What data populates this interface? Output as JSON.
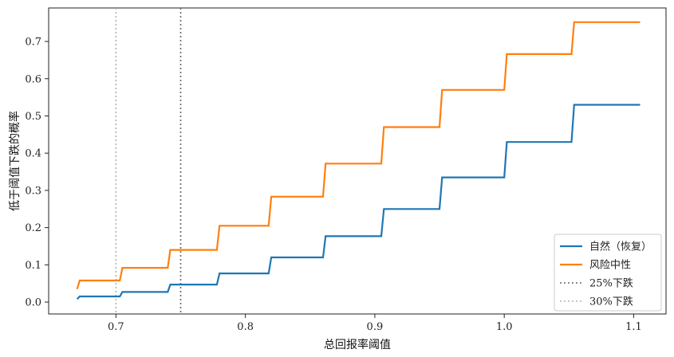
{
  "chart_data": {
    "type": "line",
    "xlabel": "总回报率阈值",
    "ylabel": "低于阈值下跌的概率",
    "xlim": [
      0.648,
      1.125
    ],
    "ylim": [
      -0.032,
      0.79
    ],
    "xticks": [
      0.7,
      0.8,
      0.9,
      1.0,
      1.1
    ],
    "xtick_labels": [
      "0.7",
      "0.8",
      "0.9",
      "1.0",
      "1.1"
    ],
    "yticks": [
      0.0,
      0.1,
      0.2,
      0.3,
      0.4,
      0.5,
      0.6,
      0.7
    ],
    "ytick_labels": [
      "0.0",
      "0.1",
      "0.2",
      "0.3",
      "0.4",
      "0.5",
      "0.6",
      "0.7"
    ],
    "grid": false,
    "legend_position": "lower-right",
    "series": [
      {
        "name": "自然（恢复）",
        "color": "#1f77b4",
        "style": "solid",
        "x": [
          0.67,
          0.672,
          0.703,
          0.705,
          0.74,
          0.742,
          0.778,
          0.78,
          0.818,
          0.82,
          0.86,
          0.862,
          0.905,
          0.907,
          0.95,
          0.952,
          1.0,
          1.002,
          1.052,
          1.054,
          1.105
        ],
        "y": [
          0.008,
          0.015,
          0.015,
          0.027,
          0.027,
          0.047,
          0.047,
          0.077,
          0.077,
          0.12,
          0.12,
          0.177,
          0.177,
          0.25,
          0.25,
          0.335,
          0.335,
          0.43,
          0.43,
          0.53,
          0.53
        ]
      },
      {
        "name": "风险中性",
        "color": "#ff7f0e",
        "style": "solid",
        "x": [
          0.67,
          0.672,
          0.703,
          0.705,
          0.74,
          0.742,
          0.778,
          0.78,
          0.818,
          0.82,
          0.86,
          0.862,
          0.905,
          0.907,
          0.95,
          0.952,
          1.0,
          1.002,
          1.052,
          1.054,
          1.105
        ],
        "y": [
          0.035,
          0.058,
          0.058,
          0.092,
          0.092,
          0.14,
          0.14,
          0.205,
          0.205,
          0.283,
          0.283,
          0.372,
          0.372,
          0.47,
          0.47,
          0.57,
          0.57,
          0.666,
          0.666,
          0.752,
          0.752
        ]
      }
    ],
    "vlines": [
      {
        "name": "25%下跌",
        "x": 0.75,
        "color": "#666666",
        "style": "dotted"
      },
      {
        "name": "30%下跌",
        "x": 0.7,
        "color": "#b0b0b0",
        "style": "dotted"
      }
    ]
  }
}
